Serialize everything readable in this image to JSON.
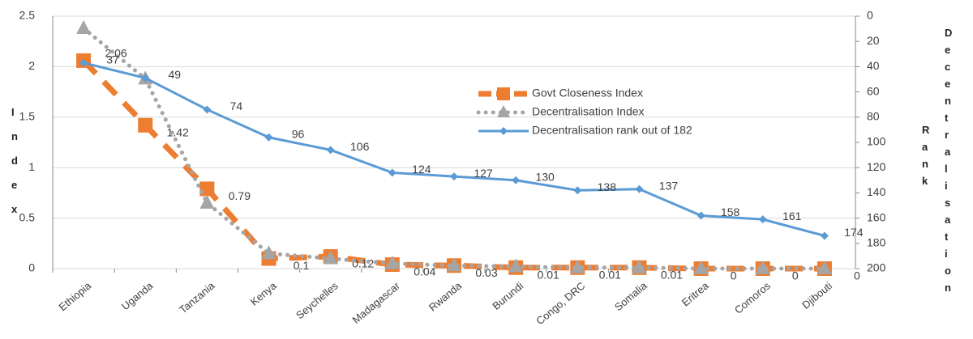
{
  "chart_data": {
    "type": "line",
    "categories": [
      "Ethiopia",
      "Uganda",
      "Tanzania",
      "Kenya",
      "Seychelles",
      "Madagascar",
      "Rwanda",
      "Burundi",
      "Congo, DRC",
      "Somalia",
      "Eritrea",
      "Comoros",
      "Djibouti"
    ],
    "series": [
      {
        "name": "Govt Closeness Index",
        "color": "#ED7D31",
        "values": [
          2.06,
          1.42,
          0.79,
          0.1,
          0.12,
          0.04,
          0.03,
          0.01,
          0.01,
          0.01,
          0,
          0,
          0
        ]
      },
      {
        "name": "Decentralisation Index",
        "color": "#A5A5A5",
        "values": [
          2.38,
          1.88,
          0.65,
          0.15,
          0.1,
          0.05,
          0.03,
          0.02,
          0.01,
          0.01,
          0,
          0,
          0
        ]
      },
      {
        "name": "Decentralisation rank out of 182",
        "color": "#5B9BD5",
        "axis": "y2",
        "values": [
          37,
          49,
          74,
          96,
          106,
          124,
          127,
          130,
          138,
          137,
          158,
          161,
          174
        ]
      }
    ],
    "ylabel": "Index",
    "y2label": "Decentralisation Rank",
    "ylim": [
      0,
      2.5
    ],
    "yticks": [
      0,
      0.5,
      1,
      1.5,
      2,
      2.5
    ],
    "y2lim": [
      0,
      200
    ],
    "y2ticks": [
      0,
      20,
      40,
      60,
      80,
      100,
      120,
      140,
      160,
      180,
      200
    ],
    "y2_inverted": true,
    "grid": true,
    "legend": "center"
  }
}
